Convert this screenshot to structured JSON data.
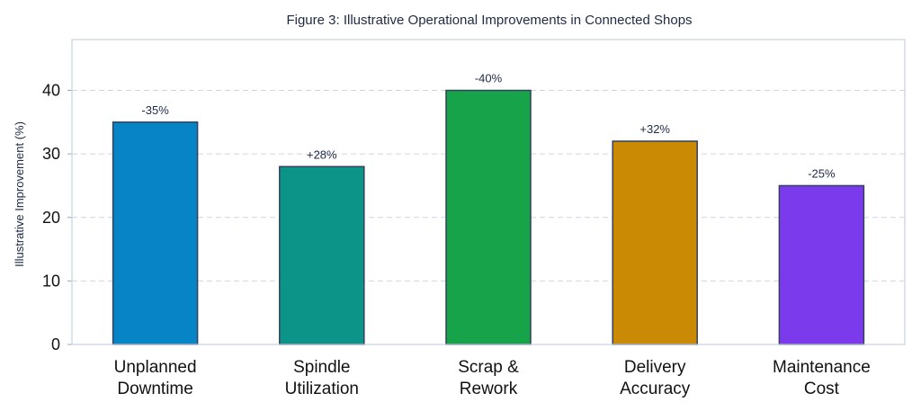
{
  "chart_data": {
    "type": "bar",
    "title": "Figure 3: Illustrative Operational Improvements in Connected Shops",
    "xlabel": "",
    "ylabel": "Illustrative Improvement (%)",
    "categories": [
      [
        "Unplanned",
        "Downtime"
      ],
      [
        "Spindle",
        "Utilization"
      ],
      [
        "Scrap &",
        "Rework"
      ],
      [
        "Delivery",
        "Accuracy"
      ],
      [
        "Maintenance",
        "Cost"
      ]
    ],
    "values": [
      35,
      28,
      40,
      32,
      25
    ],
    "data_labels": [
      "-35%",
      "+28%",
      "-40%",
      "+32%",
      "-25%"
    ],
    "colors": [
      "#0784c6",
      "#0d9488",
      "#16a34a",
      "#ca8a04",
      "#7c3aed"
    ],
    "ylim": [
      0,
      48
    ],
    "yticks": [
      0,
      10,
      20,
      30,
      40
    ],
    "grid": true
  }
}
